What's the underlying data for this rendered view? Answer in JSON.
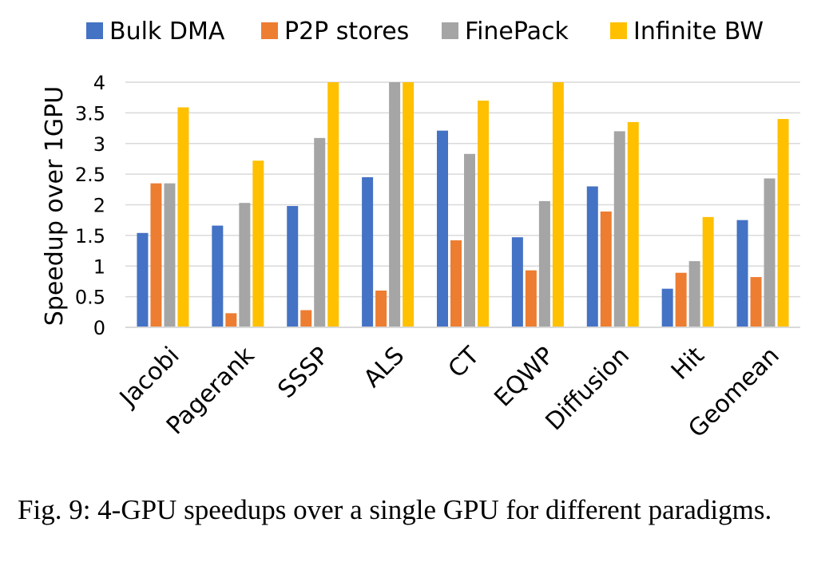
{
  "chart_data": {
    "type": "bar",
    "categories": [
      "Jacobi",
      "Pagerank",
      "SSSP",
      "ALS",
      "CT",
      "EQWP",
      "Diffusion",
      "Hit",
      "Geomean"
    ],
    "series": [
      {
        "name": "Bulk DMA",
        "color": "#4472C4",
        "values": [
          1.54,
          1.66,
          1.98,
          2.45,
          3.21,
          1.47,
          2.3,
          0.63,
          1.75
        ]
      },
      {
        "name": "P2P stores",
        "color": "#ED7D31",
        "values": [
          2.35,
          0.23,
          0.28,
          0.6,
          1.42,
          0.93,
          1.89,
          0.89,
          0.82
        ]
      },
      {
        "name": "FinePack",
        "color": "#A5A5A5",
        "values": [
          2.35,
          2.03,
          3.09,
          4.0,
          2.83,
          2.06,
          3.2,
          1.08,
          2.43
        ]
      },
      {
        "name": "Infinite BW",
        "color": "#FFC000",
        "values": [
          3.59,
          2.72,
          4.0,
          4.0,
          3.7,
          4.0,
          3.35,
          1.8,
          3.4
        ]
      }
    ],
    "ylabel": "Speedup over 1GPU",
    "xlabel": "",
    "ylim": [
      0,
      4
    ],
    "yticks": [
      "0",
      "0.5",
      "1",
      "1.5",
      "2",
      "2.5",
      "3",
      "3.5",
      "4"
    ],
    "grid": true,
    "legend_position": "top"
  },
  "caption": "Fig. 9: 4-GPU speedups over a single GPU for different paradigms."
}
